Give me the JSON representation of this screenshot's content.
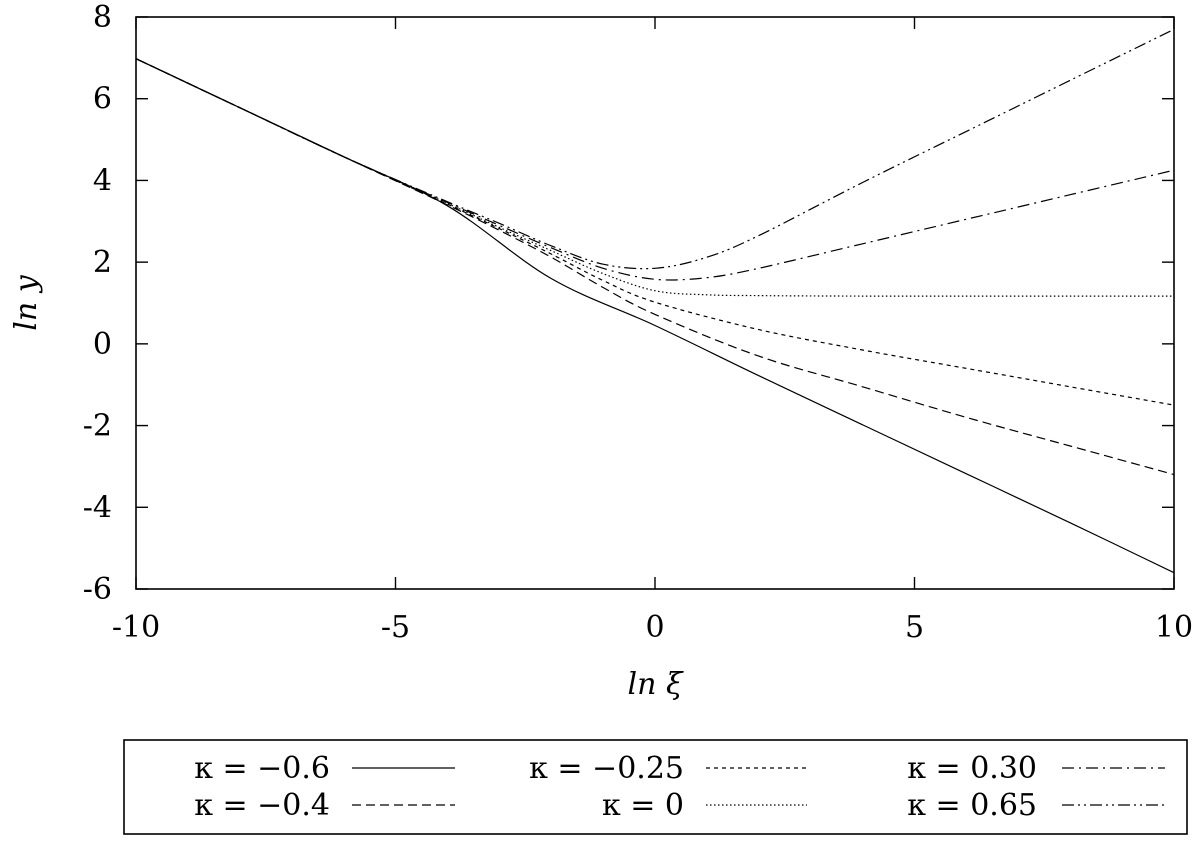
{
  "chart_data": {
    "type": "line",
    "xlabel": "ln ξ",
    "ylabel": "ln y",
    "xlim": [
      -10,
      10
    ],
    "ylim": [
      -6,
      8
    ],
    "xticks": [
      "-10",
      "-5",
      "0",
      "5",
      "10"
    ],
    "yticks": [
      "-6",
      "-4",
      "-2",
      "0",
      "2",
      "4",
      "6",
      "8"
    ],
    "grid": false,
    "legend_placement": "bottom, below plot",
    "series": [
      {
        "name": "κ = −0.6",
        "dash": "solid",
        "x": [
          -10,
          -8,
          -6,
          -4,
          -2,
          0,
          2,
          4,
          6,
          8,
          10
        ],
        "y": [
          6.98,
          5.78,
          4.58,
          3.38,
          1.6,
          0.45,
          -0.78,
          -1.98,
          -3.18,
          -4.38,
          -5.6
        ]
      },
      {
        "name": "κ = −0.4",
        "dash": "dashed",
        "x": [
          -10,
          -8,
          -6,
          -4,
          -3,
          -2,
          -1,
          0,
          2,
          4,
          6,
          8,
          10
        ],
        "y": [
          6.98,
          5.78,
          4.58,
          3.4,
          2.78,
          2.12,
          1.38,
          0.72,
          -0.3,
          -1.05,
          -1.8,
          -2.5,
          -3.2
        ]
      },
      {
        "name": "κ = −0.25",
        "dash": "short-dashed",
        "x": [
          -10,
          -8,
          -6,
          -4,
          -3,
          -2,
          -1,
          0,
          2,
          4,
          6,
          8,
          10
        ],
        "y": [
          6.98,
          5.78,
          4.58,
          3.42,
          2.82,
          2.2,
          1.55,
          1.02,
          0.35,
          -0.15,
          -0.6,
          -1.05,
          -1.5
        ]
      },
      {
        "name": "κ = 0",
        "dash": "dotted",
        "x": [
          -10,
          -8,
          -6,
          -4,
          -3,
          -2,
          -1,
          0,
          1,
          2,
          4,
          6,
          8,
          10
        ],
        "y": [
          6.98,
          5.78,
          4.58,
          3.44,
          2.85,
          2.28,
          1.72,
          1.3,
          1.2,
          1.18,
          1.17,
          1.17,
          1.17,
          1.17
        ]
      },
      {
        "name": "κ = 0.30",
        "dash": "dash-dot",
        "x": [
          -10,
          -8,
          -6,
          -4,
          -3,
          -2,
          -1,
          0,
          1,
          2,
          4,
          6,
          8,
          10
        ],
        "y": [
          6.98,
          5.78,
          4.58,
          3.46,
          2.9,
          2.35,
          1.85,
          1.58,
          1.62,
          1.85,
          2.45,
          3.05,
          3.65,
          4.25
        ]
      },
      {
        "name": "κ = 0.65",
        "dash": "dash-dot-dot",
        "x": [
          -10,
          -8,
          -6,
          -4,
          -3,
          -2,
          -1,
          0,
          1,
          2,
          4,
          6,
          8,
          10
        ],
        "y": [
          6.98,
          5.78,
          4.58,
          3.48,
          2.95,
          2.4,
          1.95,
          1.85,
          2.12,
          2.65,
          3.95,
          5.2,
          6.45,
          7.7
        ]
      }
    ]
  }
}
